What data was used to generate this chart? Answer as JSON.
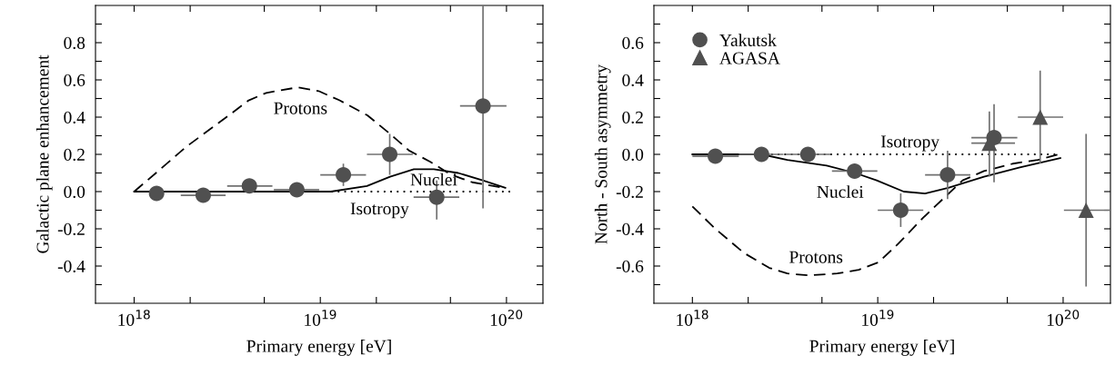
{
  "chart_data": [
    {
      "type": "scatter",
      "xlabel": "Primary energy [eV]",
      "ylabel": "Galactic plane enhancement",
      "log": "x",
      "grid": false,
      "legend": false,
      "xlim": [
        6.2e+17,
        1.57e+20
      ],
      "ylim": [
        -0.6,
        1.0
      ],
      "xticks": [
        {
          "value": 1e+18,
          "label": "10$^{18}$"
        },
        {
          "value": 2e+18,
          "label": null
        },
        {
          "value": 5e+18,
          "label": null
        },
        {
          "value": 1e+19,
          "label": "10$^{19}$"
        },
        {
          "value": 2e+19,
          "label": null
        },
        {
          "value": 5e+19,
          "label": null
        },
        {
          "value": 1e+20,
          "label": "10$^{20}$"
        }
      ],
      "yticks": [
        {
          "value": -0.5,
          "label": null
        },
        -0.4,
        {
          "value": -0.3,
          "label": null
        },
        -0.2,
        {
          "value": -0.1,
          "label": null
        },
        {
          "value": 0,
          "label": "0.0"
        },
        {
          "value": 0.1,
          "label": null
        },
        0.2,
        {
          "value": 0.3,
          "label": null
        },
        0.4,
        {
          "value": 0.5,
          "label": null
        },
        0.6,
        {
          "value": 0.7,
          "label": null
        },
        0.8,
        {
          "value": 0.9,
          "label": null
        }
      ],
      "series": [
        {
          "type": "line",
          "line_style": "dotted",
          "marker": "none",
          "color": "#000000",
          "x": [
            1e+18,
            1.08e+20
          ],
          "values": [
            0.0,
            0.0
          ]
        },
        {
          "type": "line",
          "line_style": "dashed",
          "marker": "none",
          "color": "#000000",
          "x": [
            1e+18,
            1.31e+18,
            1.9e+18,
            2.68e+18,
            3.33e+18,
            4.12e+18,
            5.12e+18,
            7.55e+18,
            9.8e+18,
            1.27e+19,
            1.79e+19,
            2.37e+19,
            3e+19,
            3.9e+19,
            5.06e+19,
            6.55e+19,
            9.66e+19
          ],
          "values": [
            0.0,
            0.1,
            0.24,
            0.35,
            0.42,
            0.49,
            0.53,
            0.56,
            0.54,
            0.49,
            0.41,
            0.31,
            0.22,
            0.16,
            0.09,
            0.05,
            0.02
          ]
        },
        {
          "type": "line",
          "line_style": "solid",
          "marker": "none",
          "color": "#000000",
          "x": [
            1e+18,
            1.14e+19,
            1.78e+19,
            2.37e+19,
            3.18e+19,
            4.07e+19,
            5.5e+19,
            7.45e+19,
            9.86e+19
          ],
          "values": [
            0.0,
            0.0,
            0.03,
            0.08,
            0.12,
            0.12,
            0.1,
            0.06,
            0.02
          ]
        },
        {
          "marker": "circle",
          "color": "#505050",
          "x": [
            1.32e+18,
            2.35e+18,
            4.16e+18,
            7.48e+18,
            1.33e+19,
            2.36e+19,
            4.22e+19,
            7.48e+19
          ],
          "values": [
            -0.01,
            -0.02,
            0.03,
            0.01,
            0.09,
            0.2,
            -0.03,
            0.46
          ],
          "errors": [
            null,
            null,
            null,
            null,
            0.06,
            0.11,
            [
              -0.15,
              0.06
            ],
            [
              -0.09,
              1.0
            ]
          ],
          "xerrors": [
            null,
            [
              1.78e+18,
              3.1e+18
            ],
            [
              3.16e+18,
              5.53e+18
            ],
            [
              5.63e+18,
              9.86e+18
            ],
            [
              1e+19,
              1.76e+19
            ],
            [
              1.78e+19,
              3.14e+19
            ],
            [
              3.17e+19,
              5.58e+19
            ],
            [
              5.63e+19,
              1e+20
            ]
          ]
        }
      ],
      "annotations": [
        "Protons",
        "Nuclei",
        "Isotropy"
      ]
    },
    {
      "type": "scatter",
      "xlabel": "Primary energy [eV]",
      "ylabel": "North - South asymmetry",
      "log": "x",
      "grid": false,
      "legend": "top left",
      "xlim": [
        6.2e+17,
        1.8e+20
      ],
      "ylim": [
        -0.8,
        0.8
      ],
      "xticks": [
        {
          "value": 1e+18,
          "label": "10$^{18}$"
        },
        {
          "value": 2e+18,
          "label": null
        },
        {
          "value": 5e+18,
          "label": null
        },
        {
          "value": 1e+19,
          "label": "10$^{19}$"
        },
        {
          "value": 2e+19,
          "label": null
        },
        {
          "value": 5e+19,
          "label": null
        },
        {
          "value": 1e+20,
          "label": "10$^{20}$"
        }
      ],
      "yticks": [
        {
          "value": -0.7,
          "label": null
        },
        -0.6,
        {
          "value": -0.5,
          "label": null
        },
        -0.4,
        {
          "value": -0.3,
          "label": null
        },
        -0.2,
        {
          "value": -0.1,
          "label": null
        },
        {
          "value": 0,
          "label": "0.0"
        },
        {
          "value": 0.1,
          "label": null
        },
        0.2,
        {
          "value": 0.3,
          "label": null
        },
        0.4,
        {
          "value": 0.5,
          "label": null
        },
        0.6,
        {
          "value": 0.7,
          "label": null
        }
      ],
      "series": [
        {
          "type": "line",
          "line_style": "dotted",
          "marker": "none",
          "color": "#000000",
          "x": [
            1e+18,
            9.5e+19
          ],
          "values": [
            0.0,
            0.0
          ]
        },
        {
          "type": "line",
          "line_style": "dashed",
          "marker": "none",
          "color": "#000000",
          "x": [
            1e+18,
            1.33e+18,
            1.9e+18,
            2.6e+18,
            3.25e+18,
            4.24e+18,
            6.05e+18,
            7.9e+18,
            1.01e+19,
            1.29e+19,
            1.76e+19,
            2.3e+19,
            2.87e+19,
            3.74e+19,
            5.35e+19,
            7.3e+19,
            9.5e+19
          ],
          "values": [
            -0.28,
            -0.4,
            -0.53,
            -0.61,
            -0.64,
            -0.65,
            -0.64,
            -0.62,
            -0.58,
            -0.48,
            -0.34,
            -0.23,
            -0.14,
            -0.09,
            -0.05,
            -0.03,
            0.0
          ]
        },
        {
          "type": "line",
          "line_style": "solid",
          "marker": "none",
          "color": "#000000",
          "x": [
            1e+18,
            2.36e+18,
            3.25e+18,
            5.3e+18,
            7.55e+18,
            9.86e+18,
            1.38e+19,
            1.8e+19,
            2.4e+19,
            3.74e+19,
            5.84e+19,
            9.66e+19
          ],
          "values": [
            0.0,
            0.0,
            -0.03,
            -0.06,
            -0.1,
            -0.14,
            -0.2,
            -0.21,
            -0.18,
            -0.12,
            -0.07,
            -0.02
          ]
        },
        {
          "name": "Yakutsk",
          "marker": "circle",
          "color": "#505050",
          "x": [
            1.33e+18,
            2.36e+18,
            4.2e+18,
            7.5e+18,
            1.33e+19,
            2.38e+19,
            4.24e+19
          ],
          "values": [
            -0.01,
            0.0,
            0.0,
            -0.09,
            -0.3,
            -0.11,
            0.09
          ],
          "errors": [
            null,
            null,
            null,
            0.02,
            0.09,
            0.13,
            [
              -0.15,
              0.27
            ]
          ],
          "xerrors": [
            [
              1e+18,
              1.78e+18
            ],
            [
              1.78e+18,
              3.1e+18
            ],
            [
              3.18e+18,
              5.58e+18
            ],
            [
              5.66e+18,
              9.95e+18
            ],
            [
              1e+19,
              1.76e+19
            ],
            [
              1.8e+19,
              3.16e+19
            ],
            [
              3.2e+19,
              5.66e+19
            ]
          ]
        },
        {
          "name": "AGASA",
          "marker": "triangle",
          "color": "#505050",
          "x": [
            4e+19,
            7.52e+19,
            1.33e+20
          ],
          "values": [
            0.06,
            0.2,
            -0.3
          ],
          "errors": [
            [
              -0.12,
              0.23
            ],
            0.25,
            0.41
          ],
          "xerrors": [
            [
              3.2e+19,
              5.5e+19
            ],
            [
              5.7e+19,
              1e+20
            ],
            [
              1.01e+20,
              1.8e+20
            ]
          ]
        }
      ],
      "annotations": [
        "Isotropy",
        "Nuclei",
        "Protons"
      ]
    }
  ]
}
